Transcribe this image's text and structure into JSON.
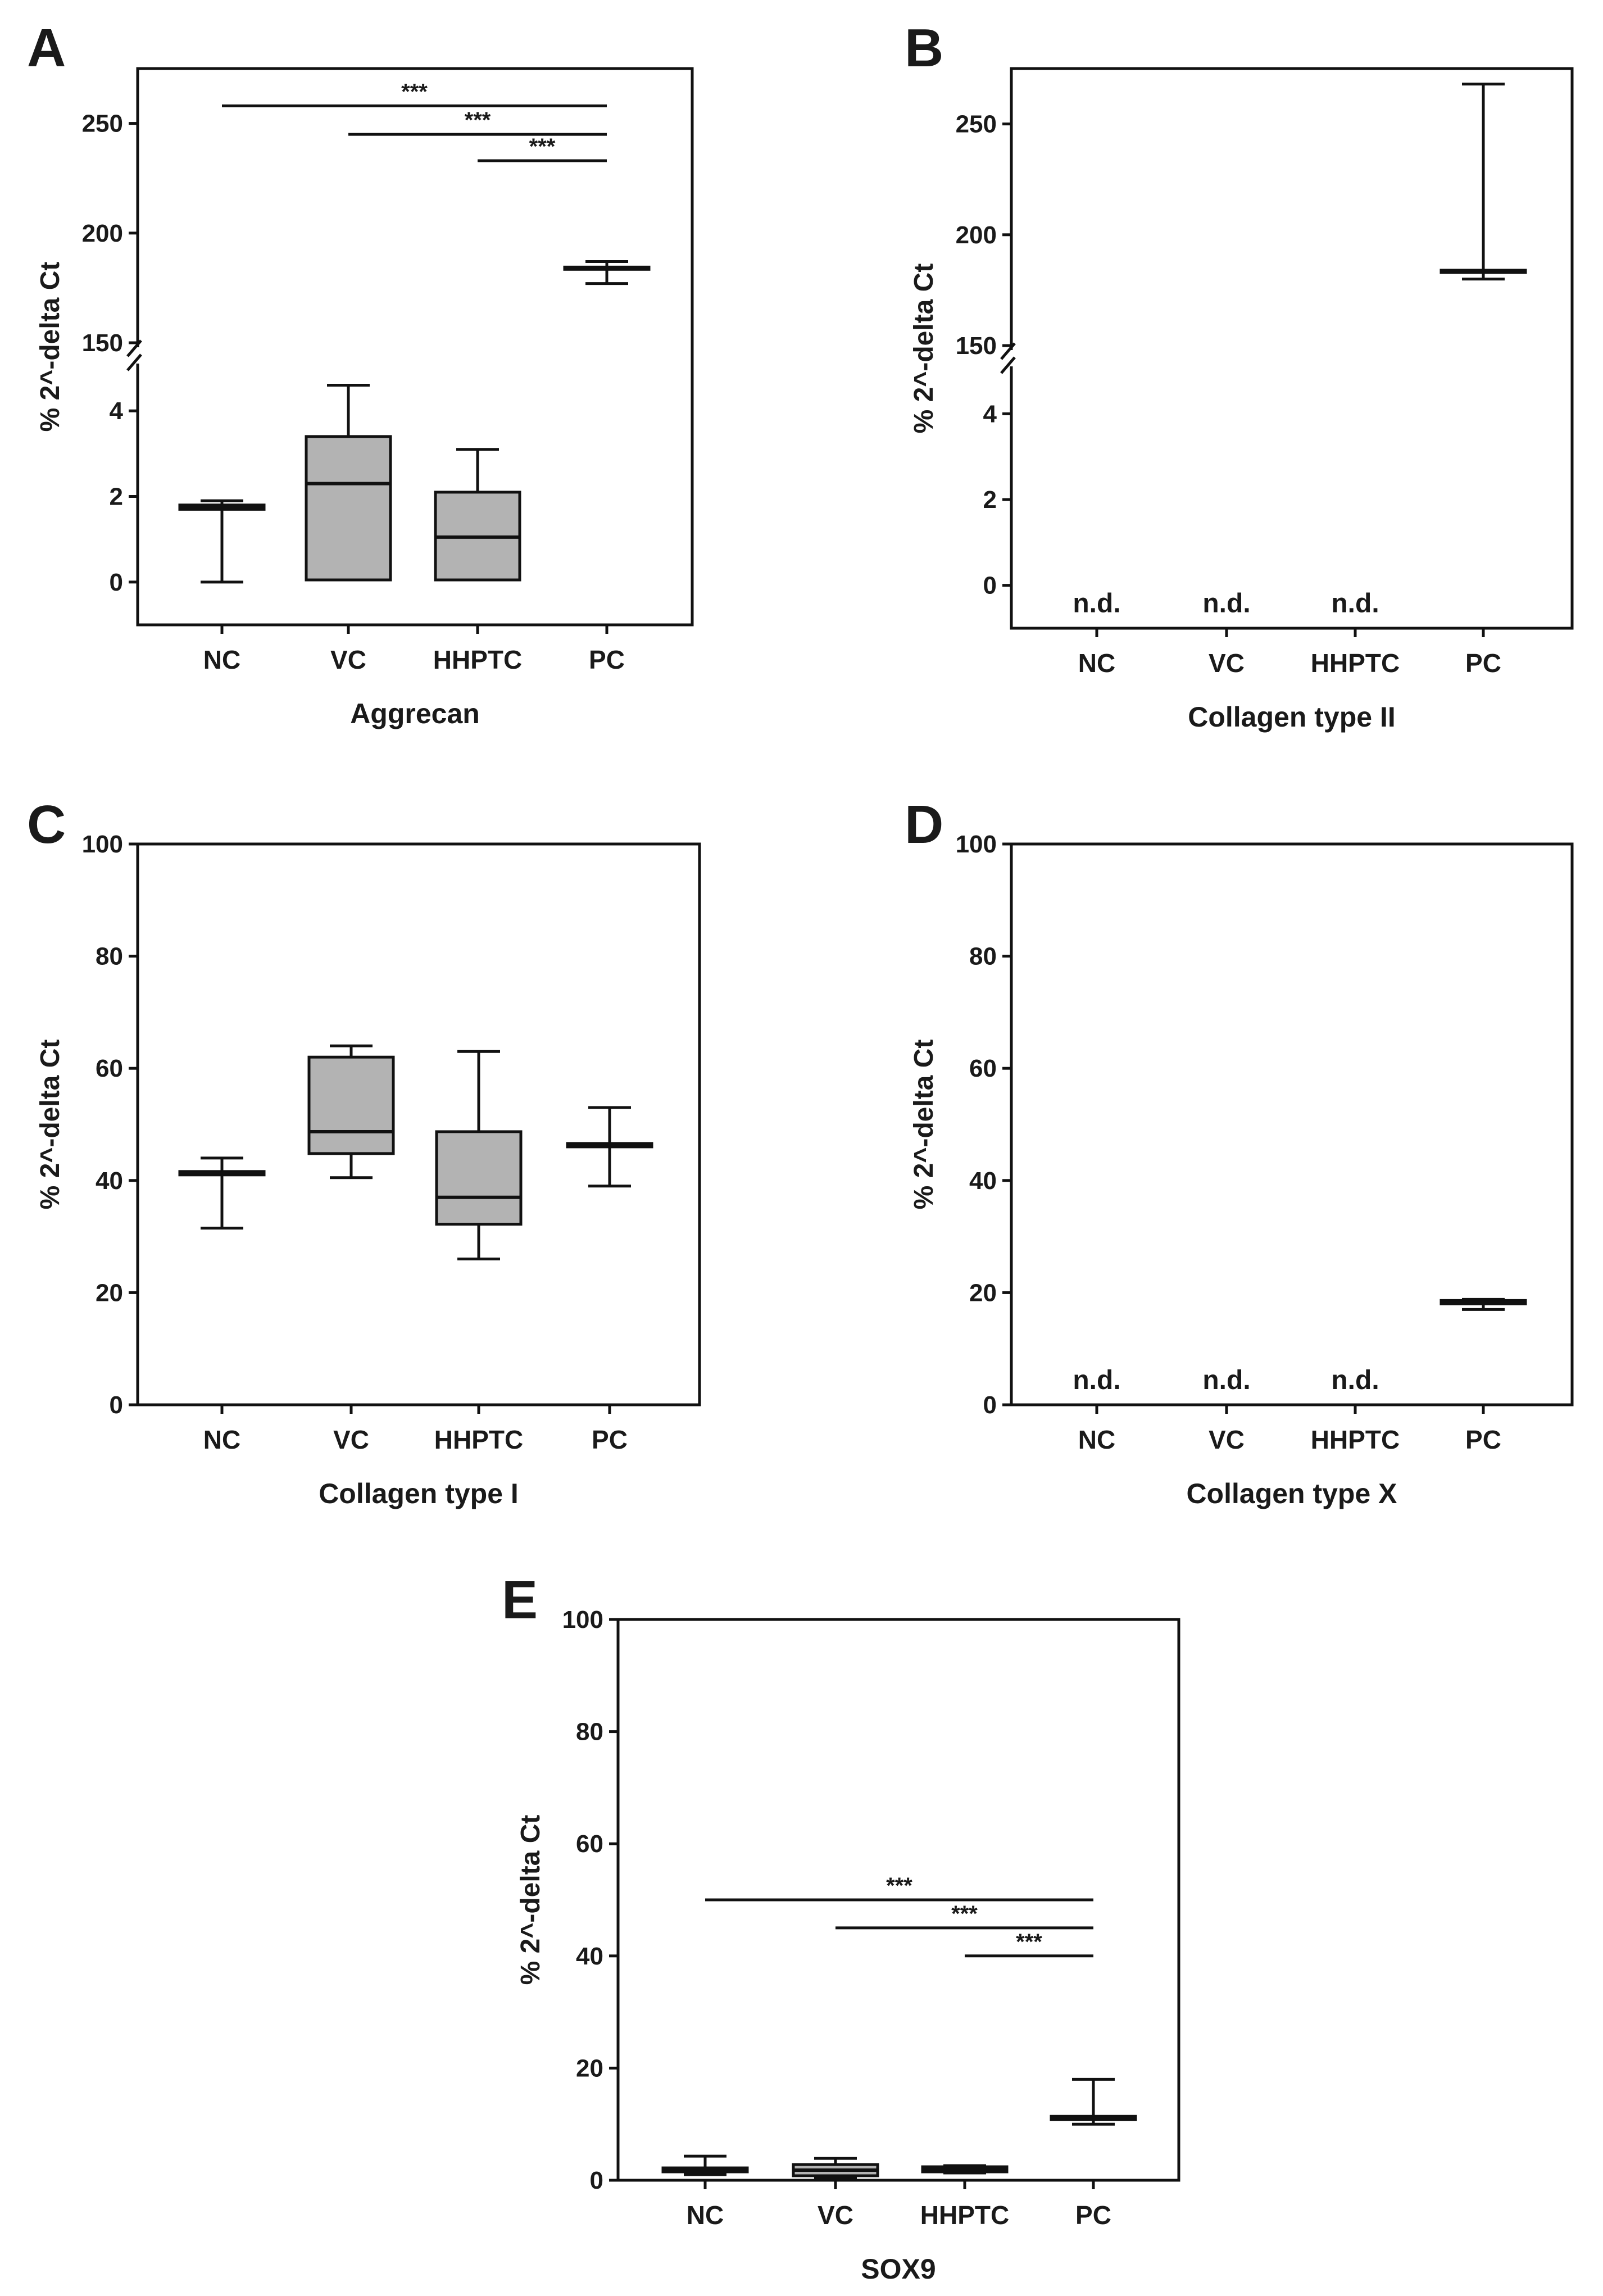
{
  "chart_data": [
    {
      "panel": "A",
      "type": "box",
      "ylabel": "% 2^-delta Ct",
      "xlabel": "Aggrecan",
      "categories": [
        "NC",
        "VC",
        "HHPTC",
        "PC"
      ],
      "axis_break": {
        "lower": [
          -1,
          5
        ],
        "upper": [
          150,
          275
        ]
      },
      "yticks_lower": [
        0,
        2,
        4
      ],
      "yticks_upper": [
        150,
        200,
        250
      ],
      "boxes": [
        {
          "label": "NC",
          "min": 0,
          "q1": 1.7,
          "median": 1.75,
          "q3": 1.8,
          "max": 1.9
        },
        {
          "label": "VC",
          "min": 0.05,
          "q1": 0.05,
          "median": 2.3,
          "q3": 3.4,
          "max": 4.6
        },
        {
          "label": "HHPTC",
          "min": 0.05,
          "q1": 0.05,
          "median": 1.05,
          "q3": 2.1,
          "max": 3.1
        },
        {
          "label": "PC",
          "min": 177,
          "q1": 183.5,
          "median": 184,
          "q3": 184.5,
          "max": 187
        }
      ],
      "significance": [
        {
          "from": "NC",
          "to": "PC",
          "y": 258,
          "label": "***"
        },
        {
          "from": "VC",
          "to": "PC",
          "y": 245,
          "label": "***"
        },
        {
          "from": "HHPTC",
          "to": "PC",
          "y": 233,
          "label": "***"
        }
      ],
      "not_detected": []
    },
    {
      "panel": "B",
      "type": "box",
      "ylabel": "% 2^-delta Ct",
      "xlabel": "Collagen type II",
      "categories": [
        "NC",
        "VC",
        "HHPTC",
        "PC"
      ],
      "axis_break": {
        "lower": [
          -1,
          5
        ],
        "upper": [
          150,
          275
        ]
      },
      "yticks_lower": [
        0,
        2,
        4
      ],
      "yticks_upper": [
        150,
        200,
        250
      ],
      "boxes": [
        {
          "label": "PC",
          "min": 180,
          "q1": 183,
          "median": 183.5,
          "q3": 184,
          "max": 268
        }
      ],
      "significance": [],
      "not_detected": [
        {
          "label": "NC",
          "text": "n.d."
        },
        {
          "label": "VC",
          "text": "n.d."
        },
        {
          "label": "HHPTC",
          "text": "n.d."
        }
      ]
    },
    {
      "panel": "C",
      "type": "box",
      "ylabel": "% 2^-delta Ct",
      "xlabel": "Collagen type I",
      "categories": [
        "NC",
        "VC",
        "HHPTC",
        "PC"
      ],
      "ylim": [
        0,
        100
      ],
      "yticks": [
        0,
        20,
        40,
        60,
        80,
        100
      ],
      "boxes": [
        {
          "label": "NC",
          "min": 31.5,
          "q1": 41,
          "median": 41.3,
          "q3": 41.6,
          "max": 44
        },
        {
          "label": "VC",
          "min": 40.5,
          "q1": 44.8,
          "median": 48.7,
          "q3": 62,
          "max": 64
        },
        {
          "label": "HHPTC",
          "min": 26,
          "q1": 32.2,
          "median": 37,
          "q3": 48.7,
          "max": 63
        },
        {
          "label": "PC",
          "min": 39,
          "q1": 46,
          "median": 46.3,
          "q3": 46.6,
          "max": 53
        }
      ],
      "significance": [],
      "not_detected": []
    },
    {
      "panel": "D",
      "type": "box",
      "ylabel": "% 2^-delta Ct",
      "xlabel": "Collagen type X",
      "categories": [
        "NC",
        "VC",
        "HHPTC",
        "PC"
      ],
      "ylim": [
        0,
        100
      ],
      "yticks": [
        0,
        20,
        40,
        60,
        80,
        100
      ],
      "boxes": [
        {
          "label": "PC",
          "min": 17,
          "q1": 18,
          "median": 18.3,
          "q3": 18.6,
          "max": 18.8
        }
      ],
      "significance": [],
      "not_detected": [
        {
          "label": "NC",
          "text": "n.d."
        },
        {
          "label": "VC",
          "text": "n.d."
        },
        {
          "label": "HHPTC",
          "text": "n.d."
        }
      ]
    },
    {
      "panel": "E",
      "type": "box",
      "ylabel": "% 2^-delta Ct",
      "xlabel": "SOX9",
      "categories": [
        "NC",
        "VC",
        "HHPTC",
        "PC"
      ],
      "ylim": [
        0,
        100
      ],
      "yticks": [
        0,
        20,
        40,
        60,
        80,
        100
      ],
      "boxes": [
        {
          "label": "NC",
          "min": 1,
          "q1": 1.5,
          "median": 1.8,
          "q3": 2.2,
          "max": 4.3
        },
        {
          "label": "VC",
          "min": 0.3,
          "q1": 0.8,
          "median": 1.8,
          "q3": 2.8,
          "max": 3.9
        },
        {
          "label": "HHPTC",
          "min": 1.3,
          "q1": 1.5,
          "median": 2,
          "q3": 2.4,
          "max": 2.6
        },
        {
          "label": "PC",
          "min": 10,
          "q1": 10.8,
          "median": 11.1,
          "q3": 11.4,
          "max": 18
        }
      ],
      "significance": [
        {
          "from": "NC",
          "to": "PC",
          "y": 50,
          "label": "***"
        },
        {
          "from": "VC",
          "to": "PC",
          "y": 45,
          "label": "***"
        },
        {
          "from": "HHPTC",
          "to": "PC",
          "y": 40,
          "label": "***"
        }
      ],
      "not_detected": []
    }
  ]
}
